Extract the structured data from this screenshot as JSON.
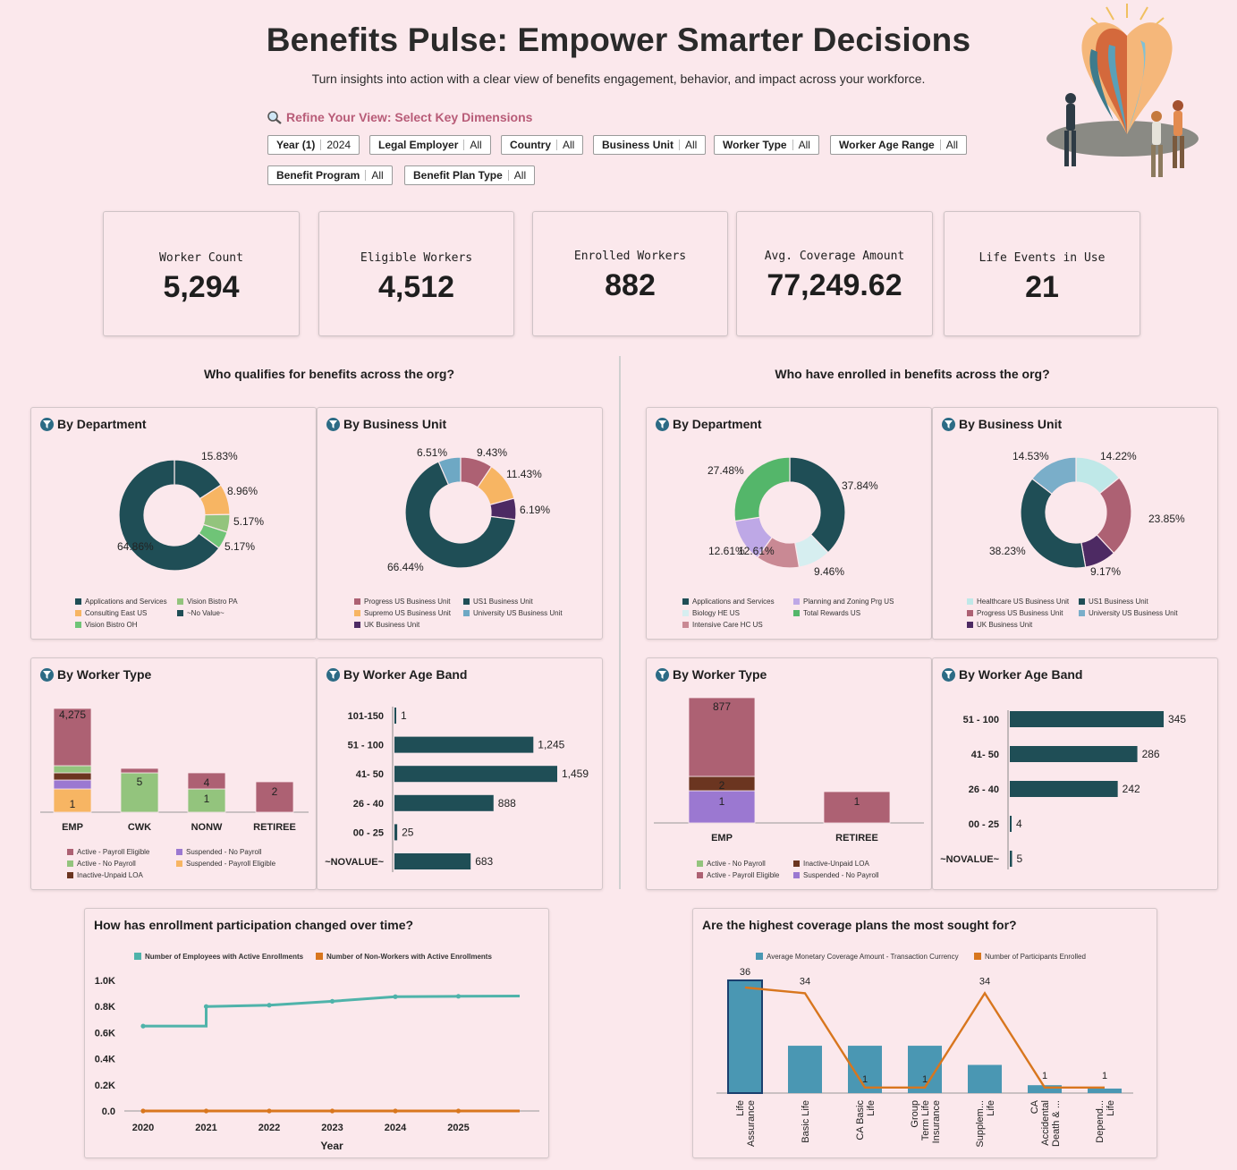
{
  "header": {
    "title": "Benefits Pulse: Empower Smarter Decisions",
    "subtitle": "Turn insights into action with a clear view of benefits engagement, behavior, and impact across your workforce.",
    "refine_label": "Refine Your View: Select Key Dimensions"
  },
  "filters": [
    {
      "name": "Year (1)",
      "value": "2024"
    },
    {
      "name": "Legal Employer",
      "value": "All"
    },
    {
      "name": "Country",
      "value": "All"
    },
    {
      "name": "Business Unit",
      "value": "All"
    },
    {
      "name": "Worker Type",
      "value": "All"
    },
    {
      "name": "Worker Age Range",
      "value": "All"
    },
    {
      "name": "Benefit Program",
      "value": "All"
    },
    {
      "name": "Benefit Plan Type",
      "value": "All"
    }
  ],
  "kpis": [
    {
      "label": "Worker Count",
      "value": "5,294"
    },
    {
      "label": "Eligible Workers",
      "value": "4,512"
    },
    {
      "label": "Enrolled Workers",
      "value": "882"
    },
    {
      "label": "Avg. Coverage Amount",
      "value": "77,249.62"
    },
    {
      "label": "Life Events in Use",
      "value": "21"
    }
  ],
  "sections": {
    "left": "Who qualifies for benefits across the org?",
    "right": "Who have enrolled in benefits across the org?"
  },
  "colors": {
    "teal": "#1f4e56",
    "mauve": "#ad6173",
    "orange": "#f7b563",
    "green": "#6fc477",
    "lightgreen": "#93c47d",
    "purple": "#4d2a63",
    "blue": "#6ea8c4",
    "lavender": "#bea8e6",
    "lightcyan": "#bfe8e8",
    "rose": "#c98994",
    "brown": "#6b3520",
    "violet": "#9b78d1",
    "line_teal": "#4fb3aa",
    "line_orange": "#d8761e",
    "bar_blue": "#4a97b3"
  },
  "panels": {
    "elig_dept": {
      "title": "By Department"
    },
    "elig_bu": {
      "title": "By Business Unit"
    },
    "elig_wt": {
      "title": "By Worker Type"
    },
    "elig_age": {
      "title": "By Worker Age Band"
    },
    "enr_dept": {
      "title": "By Department"
    },
    "enr_bu": {
      "title": "By Business Unit"
    },
    "enr_wt": {
      "title": "By Worker Type"
    },
    "enr_age": {
      "title": "By Worker Age Band"
    },
    "trend": {
      "title": "How has enrollment participation changed over time?"
    },
    "coverage": {
      "title": "Are the highest coverage plans the most sought for?"
    }
  },
  "chart_data": [
    {
      "id": "elig_dept",
      "type": "pie",
      "slices": [
        {
          "label": "~No Value~",
          "value": 64.86,
          "display": "64.86%",
          "color": "#1f4e56"
        },
        {
          "label": "Applications and Services",
          "value": 15.83,
          "display": "15.83%",
          "color": "#1f4e56"
        },
        {
          "label": "Consulting East US",
          "value": 8.96,
          "display": "8.96%",
          "color": "#f7b563"
        },
        {
          "label": "Vision Bistro PA",
          "value": 5.17,
          "display": "5.17%",
          "color": "#93c47d"
        },
        {
          "label": "Vision Bistro OH",
          "value": 5.17,
          "display": "5.17%",
          "color": "#6fc477"
        }
      ],
      "legend": [
        {
          "label": "Applications and Services",
          "color": "#1f4e56"
        },
        {
          "label": "Vision Bistro PA",
          "color": "#93c47d"
        },
        {
          "label": "Consulting East US",
          "color": "#f7b563"
        },
        {
          "label": "~No Value~",
          "color": "#1f4e56"
        },
        {
          "label": "Vision Bistro OH",
          "color": "#6fc477"
        }
      ]
    },
    {
      "id": "elig_bu",
      "type": "pie",
      "slices": [
        {
          "label": "Progress US Business Unit",
          "value": 9.43,
          "display": "9.43%",
          "color": "#ad6173"
        },
        {
          "label": "Supremo US Business Unit",
          "value": 11.43,
          "display": "11.43%",
          "color": "#f7b563"
        },
        {
          "label": "UK Business Unit",
          "value": 6.19,
          "display": "6.19%",
          "color": "#4d2a63"
        },
        {
          "label": "US1 Business Unit",
          "value": 66.44,
          "display": "66.44%",
          "color": "#1f4e56"
        },
        {
          "label": "University US Business Unit",
          "value": 6.51,
          "display": "6.51%",
          "color": "#6ea8c4"
        }
      ],
      "legend": [
        {
          "label": "Progress US Business Unit",
          "color": "#ad6173"
        },
        {
          "label": "US1 Business Unit",
          "color": "#1f4e56"
        },
        {
          "label": "Supremo US Business Unit",
          "color": "#f7b563"
        },
        {
          "label": "University US Business Unit",
          "color": "#6ea8c4"
        },
        {
          "label": "UK Business Unit",
          "color": "#4d2a63"
        }
      ]
    },
    {
      "id": "enr_dept",
      "type": "pie",
      "slices": [
        {
          "label": "Applications and Services",
          "value": 37.84,
          "display": "37.84%",
          "color": "#1f4e56"
        },
        {
          "label": "Biology HE US",
          "value": 9.46,
          "display": "9.46%",
          "color": "#d6eef0"
        },
        {
          "label": "Intensive Care HC US",
          "value": 12.61,
          "display": "12.61%",
          "color": "#c98994"
        },
        {
          "label": "Planning and Zoning Prg US",
          "value": 12.61,
          "display": "12.61%",
          "color": "#bea8e6"
        },
        {
          "label": "Total Rewards US",
          "value": 27.48,
          "display": "27.48%",
          "color": "#54b66a"
        }
      ],
      "legend": [
        {
          "label": "Applications and Services",
          "color": "#1f4e56"
        },
        {
          "label": "Planning and Zoning Prg US",
          "color": "#bea8e6"
        },
        {
          "label": "Biology HE US",
          "color": "#d6eef0"
        },
        {
          "label": "Total Rewards US",
          "color": "#54b66a"
        },
        {
          "label": "Intensive Care HC US",
          "color": "#c98994"
        }
      ]
    },
    {
      "id": "enr_bu",
      "type": "pie",
      "slices": [
        {
          "label": "Healthcare US Business Unit",
          "value": 14.22,
          "display": "14.22%",
          "color": "#bfe8e8"
        },
        {
          "label": "Progress US Business Unit",
          "value": 23.85,
          "display": "23.85%",
          "color": "#ad6173"
        },
        {
          "label": "UK Business Unit",
          "value": 9.17,
          "display": "9.17%",
          "color": "#4d2a63"
        },
        {
          "label": "US1 Business Unit",
          "value": 38.23,
          "display": "38.23%",
          "color": "#1f4e56"
        },
        {
          "label": "University US Business Unit",
          "value": 14.53,
          "display": "14.53%",
          "color": "#7aaec9"
        }
      ],
      "legend": [
        {
          "label": "Healthcare US Business Unit",
          "color": "#bfe8e8"
        },
        {
          "label": "US1 Business Unit",
          "color": "#1f4e56"
        },
        {
          "label": "Progress US Business Unit",
          "color": "#ad6173"
        },
        {
          "label": "University US Business Unit",
          "color": "#7aaec9"
        },
        {
          "label": "UK Business Unit",
          "color": "#4d2a63"
        }
      ]
    },
    {
      "id": "elig_wt",
      "type": "bar",
      "stacked": true,
      "categories": [
        "EMP",
        "CWK",
        "NONW",
        "RETIREE"
      ],
      "series": [
        {
          "name": "Suspended - Payroll Eligible",
          "color": "#f7b563",
          "values": [
            1,
            0,
            0,
            0
          ]
        },
        {
          "name": "Suspended - No Payroll",
          "color": "#9b78d1",
          "values": [
            1,
            0,
            0,
            0
          ]
        },
        {
          "name": "Inactive-Unpaid LOA",
          "color": "#6b3520",
          "values": [
            1,
            0,
            0,
            0
          ]
        },
        {
          "name": "Active - No Payroll",
          "color": "#93c47d",
          "values": [
            1,
            5,
            1,
            0
          ]
        },
        {
          "name": "Active - Payroll Eligible",
          "color": "#ad6173",
          "values": [
            4275,
            1,
            4,
            2
          ]
        }
      ],
      "labels": [
        {
          "cat": "EMP",
          "text": "4,275"
        },
        {
          "cat": "EMP",
          "text": "1"
        },
        {
          "cat": "CWK",
          "text": "5"
        },
        {
          "cat": "NONW",
          "text": "4"
        },
        {
          "cat": "NONW",
          "text": "1"
        },
        {
          "cat": "RETIREE",
          "text": "2"
        }
      ],
      "legend": [
        {
          "label": "Active - Payroll Eligible",
          "color": "#ad6173"
        },
        {
          "label": "Suspended - No Payroll",
          "color": "#9b78d1"
        },
        {
          "label": "Active - No Payroll",
          "color": "#93c47d"
        },
        {
          "label": "Suspended - Payroll Eligible",
          "color": "#f7b563"
        },
        {
          "label": "Inactive-Unpaid LOA",
          "color": "#6b3520"
        }
      ]
    },
    {
      "id": "elig_age",
      "type": "bar",
      "orientation": "horizontal",
      "categories": [
        "101-150",
        "51 - 100",
        "41- 50",
        "26 - 40",
        "00 - 25",
        "~NOVALUE~"
      ],
      "values": [
        1,
        1245,
        1459,
        888,
        25,
        683
      ],
      "labels": [
        "1",
        "1,245",
        "1,459",
        "888",
        "25",
        "683"
      ],
      "xlim": [
        0,
        1459
      ]
    },
    {
      "id": "enr_wt",
      "type": "bar",
      "stacked": true,
      "categories": [
        "EMP",
        "RETIREE"
      ],
      "series": [
        {
          "name": "Suspended - No Payroll",
          "color": "#9b78d1",
          "values": [
            1,
            0
          ]
        },
        {
          "name": "Inactive-Unpaid LOA",
          "color": "#6b3520",
          "values": [
            2,
            0
          ]
        },
        {
          "name": "Active - Payroll Eligible",
          "color": "#ad6173",
          "values": [
            877,
            1
          ]
        }
      ],
      "labels": [
        {
          "cat": "EMP",
          "text": "877"
        },
        {
          "cat": "EMP",
          "text": "2"
        },
        {
          "cat": "EMP",
          "text": "1"
        },
        {
          "cat": "RETIREE",
          "text": "1"
        }
      ],
      "legend": [
        {
          "label": "Active - No Payroll",
          "color": "#93c47d"
        },
        {
          "label": "Inactive-Unpaid LOA",
          "color": "#6b3520"
        },
        {
          "label": "Active - Payroll Eligible",
          "color": "#ad6173"
        },
        {
          "label": "Suspended - No Payroll",
          "color": "#9b78d1"
        }
      ]
    },
    {
      "id": "enr_age",
      "type": "bar",
      "orientation": "horizontal",
      "categories": [
        "51 - 100",
        "41- 50",
        "26 - 40",
        "00 - 25",
        "~NOVALUE~"
      ],
      "values": [
        345,
        286,
        242,
        4,
        5
      ],
      "labels": [
        "345",
        "286",
        "242",
        "4",
        "5"
      ],
      "xlim": [
        0,
        345
      ]
    },
    {
      "id": "trend",
      "type": "line",
      "xlabel": "Year",
      "x_ticks": [
        "2020",
        "2021",
        "2022",
        "2023",
        "2024",
        "2025"
      ],
      "y_ticks": [
        "0.0",
        "0.2K",
        "0.4K",
        "0.6K",
        "0.8K",
        "1.0K"
      ],
      "ylim": [
        0,
        1000
      ],
      "series": [
        {
          "name": "Number of Employees with Active Enrollments",
          "color": "#4fb3aa",
          "points": [
            [
              2020.0,
              650
            ],
            [
              2021.0,
              650
            ],
            [
              2021.0,
              800
            ],
            [
              2022.0,
              810
            ],
            [
              2023.0,
              840
            ],
            [
              2024.0,
              875
            ],
            [
              2025.0,
              878
            ],
            [
              2026.0,
              880
            ]
          ]
        },
        {
          "name": "Number of Non-Workers with Active Enrollments",
          "color": "#d8761e",
          "points": [
            [
              2020.0,
              0
            ],
            [
              2021.0,
              0
            ],
            [
              2022.0,
              0
            ],
            [
              2023.0,
              0
            ],
            [
              2024.0,
              0
            ],
            [
              2025.0,
              0
            ],
            [
              2026.0,
              0
            ]
          ]
        }
      ]
    },
    {
      "id": "coverage",
      "type": "bar",
      "categories": [
        "Life Assurance",
        "Basic Life",
        "CA Basic Life",
        "Group Term Life Insurance",
        "Supplem... Life",
        "CA Accidental Death & ...",
        "Depend... Life"
      ],
      "category_lines": [
        [
          "Life",
          "Assurance"
        ],
        [
          "Basic Life"
        ],
        [
          "CA Basic",
          "Life"
        ],
        [
          "Group",
          "Term Life",
          "Insurance"
        ],
        [
          "Supplem...",
          "Life"
        ],
        [
          "CA",
          "Accidental",
          "Death & ..."
        ],
        [
          "Depend...",
          "Life"
        ]
      ],
      "series": [
        {
          "name": "Average Monetary Coverage Amount - Transaction Currency",
          "color": "#4a97b3",
          "values": [
            100,
            42,
            42,
            42,
            25,
            7,
            4
          ]
        },
        {
          "name": "Number of Participants Enrolled",
          "color": "#d8761e",
          "values": [
            36,
            34,
            1,
            1,
            34,
            1,
            1
          ]
        }
      ],
      "line_labels": [
        "36",
        "34",
        "1",
        "1",
        "34",
        "1",
        "1"
      ]
    }
  ]
}
